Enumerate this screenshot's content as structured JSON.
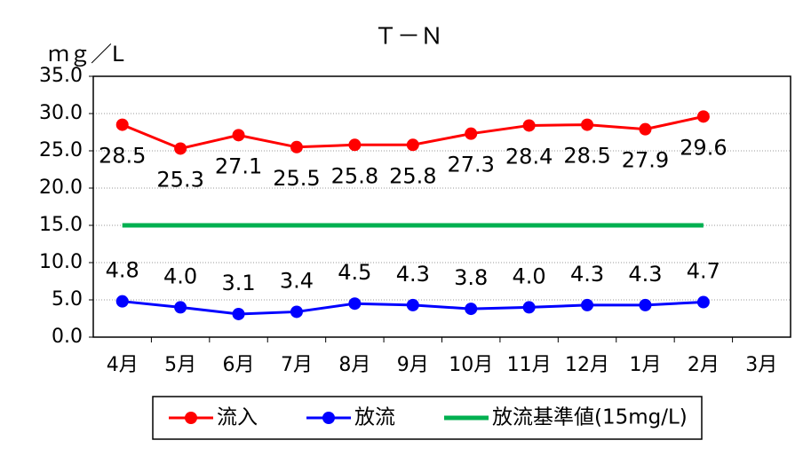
{
  "chart_data": {
    "type": "line",
    "title": "Ｔ－Ｎ",
    "y_label": "ｍｇ／L",
    "categories": [
      "4月",
      "5月",
      "6月",
      "7月",
      "8月",
      "9月",
      "10月",
      "11月",
      "12月",
      "1月",
      "2月",
      "3月"
    ],
    "series": [
      {
        "name": "流入",
        "color": "#ff0000",
        "marker": true,
        "labels": "below",
        "values": [
          28.5,
          25.3,
          27.1,
          25.5,
          25.8,
          25.8,
          27.3,
          28.4,
          28.5,
          27.9,
          29.6,
          null
        ]
      },
      {
        "name": "放流",
        "color": "#0000ff",
        "marker": true,
        "labels": "above",
        "values": [
          4.8,
          4.0,
          3.1,
          3.4,
          4.5,
          4.3,
          3.8,
          4.0,
          4.3,
          4.3,
          4.7,
          null
        ],
        "value_labels": [
          "4.8",
          "4.0",
          "3.1",
          "3.4",
          "4.5",
          "4.3",
          "3.8",
          "4.0",
          "4.3",
          "4.3",
          "4.7",
          null
        ]
      },
      {
        "name": "放流基準値(15mg/L)",
        "color": "#00b050",
        "marker": false,
        "values": [
          15,
          15,
          15,
          15,
          15,
          15,
          15,
          15,
          15,
          15,
          15,
          null
        ]
      }
    ],
    "ylim": [
      0,
      35
    ],
    "yticks": [
      {
        "value": 0,
        "label": "0.0"
      },
      {
        "value": 5,
        "label": "5.0"
      },
      {
        "value": 10,
        "label": "10.0"
      },
      {
        "value": 15,
        "label": "15.0"
      },
      {
        "value": 20,
        "label": "20.0"
      },
      {
        "value": 25,
        "label": "25.0"
      },
      {
        "value": 30,
        "label": "30.0"
      },
      {
        "value": 35,
        "label": "35.0"
      }
    ],
    "grid": true,
    "legend": "bottom"
  }
}
